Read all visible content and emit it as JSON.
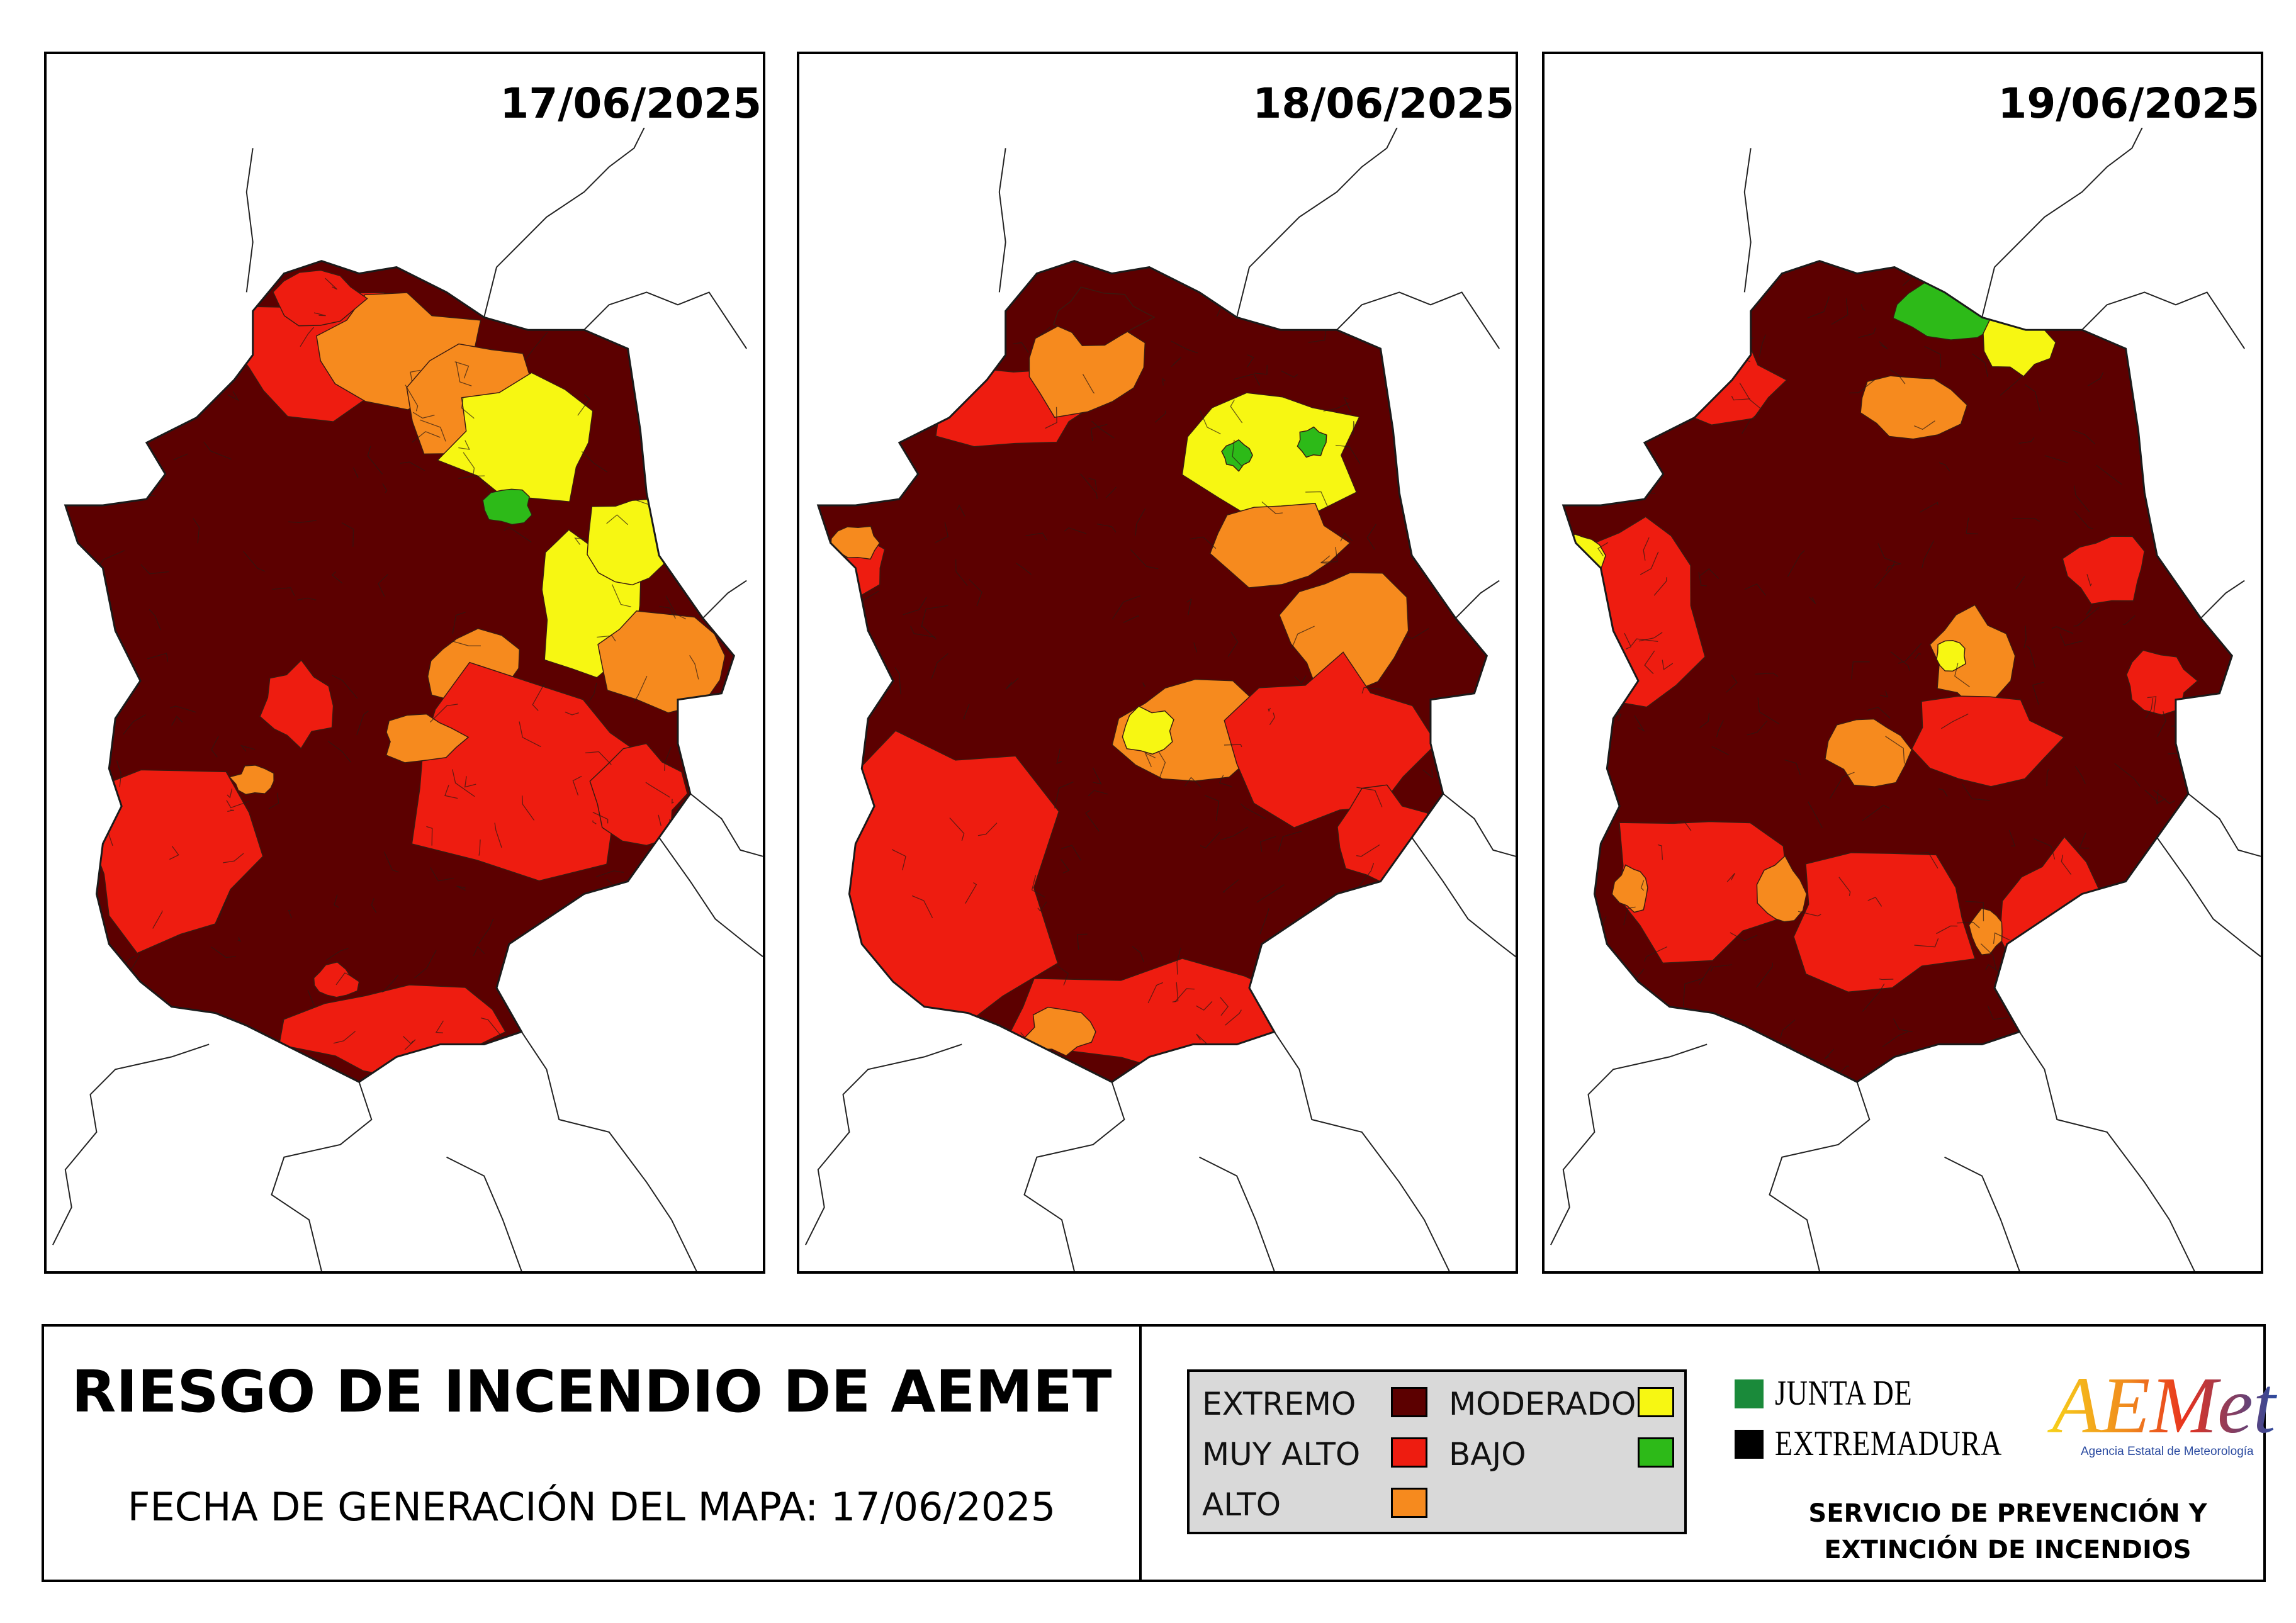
{
  "map_panels": [
    {
      "date": "17/06/2025",
      "pattern": "day1"
    },
    {
      "date": "18/06/2025",
      "pattern": "day2"
    },
    {
      "date": "19/06/2025",
      "pattern": "day3"
    }
  ],
  "footer": {
    "title": "RIESGO DE INCENDIO DE AEMET",
    "generation_label": "FECHA DE GENERACIÓN DEL MAPA: 17/06/2025"
  },
  "legend": {
    "items": [
      {
        "label": "EXTREMO",
        "color": "#5c0000"
      },
      {
        "label": "MUY ALTO",
        "color": "#ee1c10"
      },
      {
        "label": "ALTO",
        "color": "#f68a1e"
      },
      {
        "label": "MODERADO",
        "color": "#f7f712"
      },
      {
        "label": "BAJO",
        "color": "#2dba18"
      }
    ]
  },
  "logos": {
    "junta_line1": "JUNTA DE",
    "junta_line2": "EXTREMADURA",
    "junta_colors": [
      "#1a8a3a",
      "#000000"
    ],
    "aemet_name": "AEMet",
    "aemet_subtitle": "Agencia Estatal de Meteorología"
  },
  "service": {
    "line1": "SERVICIO DE PREVENCIÓN Y",
    "line2": "EXTINCIÓN DE INCENDIOS"
  }
}
